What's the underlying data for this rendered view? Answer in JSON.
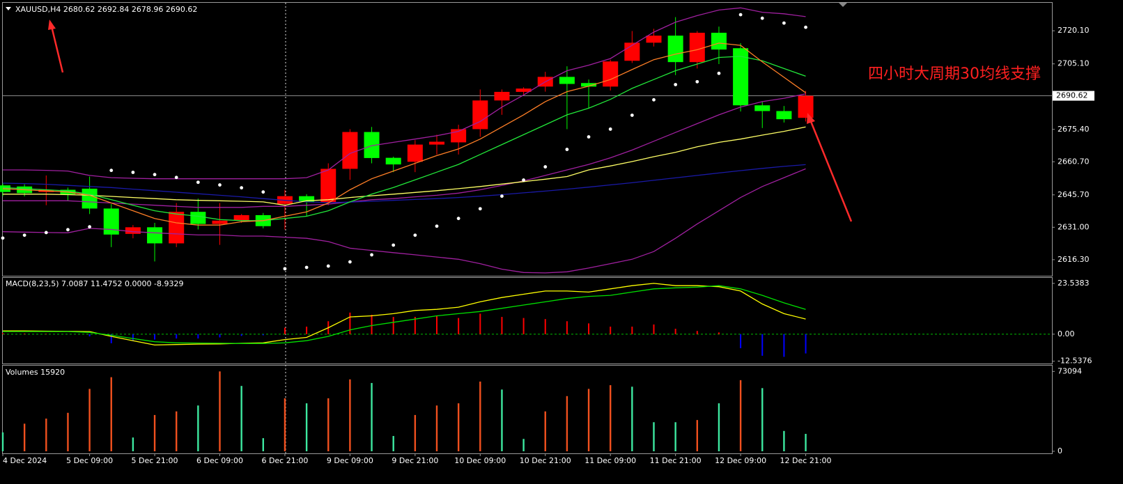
{
  "chart_data": [
    {
      "type": "candlestick",
      "title": "XAUUSD,H4  2680.62 2692.84 2678.96 2690.62",
      "annotation": "四小时大周期30均线支撑",
      "open": [
        2650,
        2649.5,
        2647,
        2648,
        2648.5,
        2639.5,
        2628,
        2631,
        2623.7,
        2638,
        2632.5,
        2634,
        2636.5,
        2641.6,
        2645.1,
        2642.3,
        2657.5,
        2674.2,
        2662.5,
        2660.7,
        2668.5,
        2669.5,
        2675.5,
        2688.5,
        2692.4,
        2694.8,
        2699.2,
        2696.4,
        2694.8,
        2706.5,
        2714.7,
        2717.9,
        2705.9,
        2719.2,
        2712.2,
        2686.3,
        2683.7,
        2680.62
      ],
      "high": [
        2651,
        2650.5,
        2654.5,
        2649,
        2654,
        2641.5,
        2632,
        2633,
        2642,
        2644,
        2642,
        2637,
        2637.5,
        2648,
        2646,
        2660,
        2675.5,
        2676.5,
        2663,
        2670.5,
        2673,
        2677.5,
        2693.5,
        2693.5,
        2694.5,
        2701.5,
        2704,
        2698,
        2707,
        2720,
        2721,
        2726.3,
        2720,
        2722,
        2714.5,
        2688,
        2686,
        2692.84
      ],
      "low": [
        2645,
        2645,
        2641,
        2643,
        2637,
        2622,
        2626,
        2615.5,
        2622,
        2630,
        2623,
        2633,
        2630.5,
        2630,
        2636,
        2641,
        2652.5,
        2660,
        2656,
        2656,
        2664,
        2664,
        2672,
        2682,
        2691,
        2692.5,
        2675.5,
        2685,
        2693,
        2705.5,
        2713,
        2700,
        2703,
        2705,
        2683.5,
        2676,
        2678.5,
        2678.96
      ],
      "close": [
        2647,
        2646.5,
        2648,
        2646,
        2639.5,
        2627.7,
        2631,
        2623.7,
        2638,
        2632.5,
        2634,
        2636.5,
        2631.5,
        2645.1,
        2642.6,
        2657.5,
        2674.2,
        2662.4,
        2659.5,
        2668.5,
        2669.8,
        2675.5,
        2688.5,
        2692.4,
        2693.9,
        2699.2,
        2696,
        2694.8,
        2706.2,
        2714.7,
        2717.9,
        2705.9,
        2719.2,
        2711.6,
        2686.3,
        2683.7,
        2680,
        2690.62
      ],
      "up_color": "#ff0000",
      "down_color": "#00ff00",
      "series": [
        {
          "color": "#a020a0",
          "values": [
            2657,
            2657,
            2656.8,
            2656.5,
            2654.5,
            2653.5,
            2653.2,
            2653,
            2653,
            2653,
            2653,
            2653,
            2653,
            2653,
            2653.5,
            2657,
            2664.5,
            2668,
            2669.5,
            2671,
            2672.5,
            2674.5,
            2679,
            2685.5,
            2691,
            2697,
            2702,
            2704.5,
            2707.5,
            2713.5,
            2719.5,
            2724,
            2727,
            2729.5,
            2730.5,
            2728.5,
            2727.8,
            2726.5
          ]
        },
        {
          "color": "#a020a0",
          "values": [
            2643,
            2643,
            2643,
            2643,
            2642.5,
            2642,
            2641.5,
            2641,
            2640.5,
            2640,
            2640,
            2640,
            2640.5,
            2640.5,
            2641,
            2641.5,
            2642.5,
            2643.5,
            2644,
            2644.8,
            2645.5,
            2646.5,
            2648,
            2650,
            2652,
            2654.5,
            2657,
            2659.5,
            2662.5,
            2666,
            2670,
            2674,
            2678,
            2682,
            2685.5,
            2688,
            2689.5,
            2691.5
          ]
        },
        {
          "color": "#a020a0",
          "values": [
            2629,
            2628.8,
            2628.6,
            2628.5,
            2630.5,
            2630,
            2629,
            2628.5,
            2628,
            2627.5,
            2627.5,
            2627,
            2627,
            2626.5,
            2626,
            2624.5,
            2621.5,
            2620.5,
            2619.5,
            2618.5,
            2617.5,
            2616.5,
            2614.5,
            2612,
            2610.5,
            2610.3,
            2610.8,
            2612.5,
            2614.5,
            2616.5,
            2620,
            2626,
            2632.5,
            2638.5,
            2644.5,
            2649.5,
            2653.5,
            2657.5
          ]
        },
        {
          "color": "#1a1aa8",
          "values": [
            2651,
            2650.8,
            2650.5,
            2650,
            2649.5,
            2649,
            2648.3,
            2647.6,
            2646.9,
            2646.2,
            2645.5,
            2644.8,
            2644,
            2643.2,
            2642.5,
            2642.2,
            2642.4,
            2642.8,
            2643.2,
            2643.6,
            2644,
            2644.5,
            2645.1,
            2645.8,
            2646.6,
            2647.4,
            2648.3,
            2649.2,
            2650.2,
            2651.2,
            2652.3,
            2653.4,
            2654.5,
            2655.6,
            2656.7,
            2657.7,
            2658.6,
            2659.4
          ]
        },
        {
          "color": "#ffff66",
          "values": [
            2646,
            2646,
            2646,
            2645.8,
            2645.5,
            2645,
            2644.5,
            2644,
            2643.5,
            2643.2,
            2643,
            2642.8,
            2642.5,
            2641,
            2643,
            2643.5,
            2644.5,
            2645.3,
            2646,
            2646.8,
            2647.6,
            2648.5,
            2649.5,
            2650.6,
            2651.7,
            2652.8,
            2654,
            2657,
            2658.8,
            2660.8,
            2663,
            2665,
            2667.5,
            2669.5,
            2671,
            2672.8,
            2674.5,
            2676.5
          ]
        },
        {
          "color": "#22e83a",
          "values": [
            2649,
            2648.5,
            2648,
            2647.5,
            2646,
            2643.5,
            2641,
            2638.5,
            2637,
            2636,
            2634.5,
            2634,
            2634,
            2635,
            2636,
            2638.5,
            2642.5,
            2646,
            2649,
            2652.5,
            2656,
            2659.5,
            2664,
            2668.5,
            2673,
            2677.5,
            2682,
            2685,
            2689,
            2694,
            2698,
            2702,
            2705,
            2708,
            2708.5,
            2706.5,
            2703,
            2699.5
          ]
        },
        {
          "color": "#ff7f27",
          "values": [
            2648.5,
            2648,
            2647.5,
            2647,
            2645.5,
            2642,
            2638.5,
            2635,
            2633,
            2632,
            2632,
            2633.5,
            2634,
            2636,
            2638,
            2642,
            2648,
            2653,
            2656.5,
            2660,
            2663.5,
            2666.5,
            2671,
            2676.5,
            2682,
            2688,
            2692.5,
            2695,
            2698,
            2702.5,
            2707,
            2709.5,
            2711.5,
            2714.5,
            2713.5,
            2706,
            2699,
            2692
          ]
        }
      ],
      "sar": {
        "color": "#ffffff",
        "values": [
          2626.1,
          2627.4,
          2628.6,
          2629.9,
          2631.2,
          2656.8,
          2655.9,
          2654.9,
          2653.6,
          2651.4,
          2650.2,
          2648.9,
          2647.0,
          2612.2,
          2612.8,
          2613.4,
          2615.3,
          2618.5,
          2622.9,
          2627.4,
          2631.5,
          2635.0,
          2639.4,
          2645.1,
          2652.4,
          2658.4,
          2666.3,
          2672.0,
          2675.5,
          2681.8,
          2688.8,
          2695.7,
          2697.0,
          2700.8,
          2727.4,
          2725.8,
          2723.6,
          2721.7
        ]
      },
      "last_price": 2690.62,
      "ylim": [
        2609,
        2732.8
      ],
      "yticks": [
        {
          "value": 2720.1,
          "label": "2720.10"
        },
        {
          "value": 2705.1,
          "label": "2705.10"
        },
        {
          "value": 2675.4,
          "label": "2675.40"
        },
        {
          "value": 2660.7,
          "label": "2660.70"
        },
        {
          "value": 2645.7,
          "label": "2645.70"
        },
        {
          "value": 2631,
          "label": "2631.00"
        },
        {
          "value": 2616.3,
          "label": "2616.30"
        }
      ]
    },
    {
      "type": "macd",
      "title": "MACD(8,23,5) 7.0087 11.4752 0.0000 -8.9329",
      "values": [
        0.5,
        0.3,
        0.2,
        0,
        -1,
        -4.2,
        -3.2,
        -2.5,
        -2,
        -2,
        -1.5,
        -0.8,
        -0.5,
        3,
        3.5,
        6,
        10,
        9,
        8,
        8,
        8.5,
        7.5,
        9.5,
        8,
        7.5,
        7,
        6,
        5,
        3.5,
        3.5,
        4.5,
        2.5,
        1.5,
        0.8,
        -6.5,
        -10,
        -10.5,
        -8.9329
      ],
      "pos_color": "#ff0000",
      "neg_color": "#0000ff",
      "series": [
        {
          "color": "#ffff00",
          "values": [
            1.5,
            1.5,
            1.4,
            1.3,
            1.2,
            -1,
            -3,
            -5,
            -4.8,
            -4.6,
            -4.5,
            -4.2,
            -4,
            -2.5,
            -1.5,
            3,
            8,
            8.5,
            9.5,
            11,
            11.5,
            12.5,
            15,
            17,
            18.5,
            20,
            20,
            19.5,
            21,
            22.5,
            23.5383,
            22.5,
            22.5,
            22,
            20,
            14,
            9.5,
            7.0087
          ]
        },
        {
          "color": "#00e000",
          "values": [
            1.2,
            1.2,
            1.2,
            1.2,
            0.8,
            -0.5,
            -2,
            -3.5,
            -4,
            -4.1,
            -4.2,
            -4.3,
            -4.3,
            -4,
            -3,
            -1,
            2,
            4,
            5.5,
            7,
            8.5,
            9.5,
            10.5,
            12,
            13.5,
            15,
            16.5,
            17.5,
            18,
            19.5,
            21,
            21.5,
            21.8,
            22.5,
            21,
            18,
            14.5,
            11.4752
          ]
        }
      ],
      "zero_color": "#00c000",
      "ylim": [
        -13.6,
        26.1
      ],
      "yticks": [
        23.5383,
        {
          "value": 0,
          "label": "0.00"
        },
        -12.5376
      ]
    },
    {
      "type": "bar",
      "title": "Volumes 15920",
      "categories": [
        "4 Dec 2024",
        null,
        null,
        null,
        "5 Dec 09:00",
        null,
        null,
        "5 Dec 21:00",
        null,
        null,
        "6 Dec 09:00",
        null,
        null,
        "6 Dec 21:00",
        null,
        null,
        "9 Dec 09:00",
        null,
        null,
        "9 Dec 21:00",
        null,
        null,
        "10 Dec 09:00",
        null,
        null,
        "10 Dec 21:00",
        null,
        null,
        "11 Dec 09:00",
        null,
        null,
        "11 Dec 21:00",
        null,
        null,
        "12 Dec 09:00",
        null,
        null,
        "12 Dec 21:00"
      ],
      "values": [
        17300,
        25250,
        29900,
        35200,
        57100,
        67800,
        12600,
        33200,
        36500,
        41900,
        73094,
        59800,
        12000,
        48500,
        43900,
        48500,
        65800,
        62500,
        14000,
        33200,
        41900,
        43900,
        63800,
        56500,
        11300,
        36500,
        50500,
        57100,
        60500,
        59100,
        26600,
        26600,
        28600,
        43900,
        65100,
        57800,
        18600,
        15920
      ],
      "colors": [
        "#3de8a0",
        "#f0501e",
        "#f0501e",
        "#f0501e",
        "#f0501e",
        "#f0501e",
        "#3de8a0",
        "#f0501e",
        "#f0501e",
        "#3de8a0",
        "#f0501e",
        "#3de8a0",
        "#3de8a0",
        "#f0501e",
        "#3de8a0",
        "#f0501e",
        "#f0501e",
        "#3de8a0",
        "#3de8a0",
        "#f0501e",
        "#f0501e",
        "#f0501e",
        "#f0501e",
        "#3de8a0",
        "#3de8a0",
        "#f0501e",
        "#f0501e",
        "#f0501e",
        "#f0501e",
        "#3de8a0",
        "#3de8a0",
        "#3de8a0",
        "#f0501e",
        "#3de8a0",
        "#f0501e",
        "#3de8a0",
        "#3de8a0",
        "#3de8a0"
      ],
      "ylim": [
        0,
        78400
      ],
      "yticks": [
        73094,
        0
      ]
    }
  ]
}
